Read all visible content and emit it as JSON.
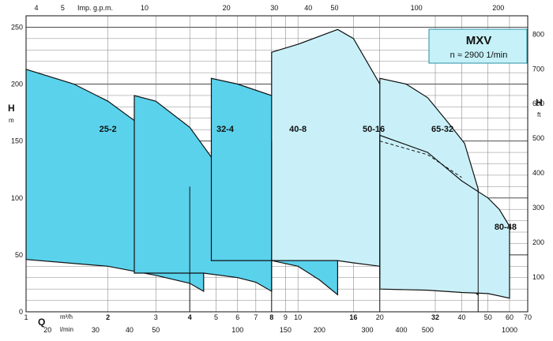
{
  "chart_data": {
    "type": "area",
    "title": "MXV",
    "subtitle": "n ≈ 2900 1/min",
    "left_axis": {
      "label": "H",
      "unit": "m",
      "range": [
        0,
        260
      ],
      "ticks": [
        0,
        50,
        100,
        150,
        200,
        250
      ]
    },
    "right_axis": {
      "label": "H",
      "unit": "ft",
      "range": [
        0,
        853
      ],
      "ticks": [
        100,
        200,
        300,
        400,
        500,
        600,
        700,
        800
      ]
    },
    "bottom_axis": {
      "label": "Q",
      "scale": "log",
      "range_m3h": [
        1,
        70
      ],
      "primary_unit": "m³/h",
      "primary_ticks": [
        "1",
        "2",
        "3",
        "4",
        "5",
        "6",
        "7",
        "8",
        "9",
        "10",
        "16",
        "20",
        "32",
        "40",
        "50",
        "60",
        "70"
      ],
      "secondary_unit": "l/min",
      "secondary_ticks": [
        "20",
        "30",
        "40",
        "50",
        "100",
        "150",
        "200",
        "300",
        "400",
        "500",
        "1000"
      ]
    },
    "top_axis": {
      "label": "Imp. g.p.m.",
      "scale": "log",
      "ticks": [
        "4",
        "5",
        "10",
        "20",
        "30",
        "40",
        "50",
        "100",
        "200"
      ]
    },
    "grid": "on",
    "series": [
      {
        "name": "25-2",
        "upper": [
          [
            1,
            213
          ],
          [
            1.5,
            200
          ],
          [
            2,
            185
          ],
          [
            2.5,
            168
          ],
          [
            3,
            150
          ],
          [
            3.5,
            130
          ],
          [
            4,
            110
          ],
          [
            4.5,
            87
          ]
        ],
        "lower": [
          [
            1,
            46
          ],
          [
            2,
            40
          ],
          [
            3,
            32
          ],
          [
            4,
            25
          ],
          [
            4.5,
            18
          ]
        ]
      },
      {
        "name": "32-4",
        "upper": [
          [
            2.5,
            190
          ],
          [
            3,
            185
          ],
          [
            4,
            162
          ],
          [
            5,
            130
          ],
          [
            6,
            115
          ],
          [
            7,
            100
          ],
          [
            8,
            73
          ]
        ],
        "lower": [
          [
            4.5,
            34
          ],
          [
            6,
            30
          ],
          [
            7,
            26
          ],
          [
            8,
            18
          ]
        ]
      },
      {
        "name": "40-8",
        "upper": [
          [
            4.8,
            205
          ],
          [
            6,
            200
          ],
          [
            8,
            190
          ],
          [
            10,
            170
          ],
          [
            12,
            140
          ],
          [
            14,
            97
          ]
        ],
        "lower": [
          [
            8,
            45
          ],
          [
            10,
            40
          ],
          [
            12,
            28
          ],
          [
            14,
            15
          ]
        ]
      },
      {
        "name": "50-16",
        "upper": [
          [
            8,
            228
          ],
          [
            10,
            235
          ],
          [
            14,
            248
          ],
          [
            16,
            240
          ],
          [
            20,
            200
          ],
          [
            25,
            107
          ]
        ],
        "lower": [
          [
            14,
            45
          ],
          [
            16,
            43
          ],
          [
            20,
            40
          ],
          [
            22,
            35
          ],
          [
            25,
            25
          ]
        ]
      },
      {
        "name": "65-32",
        "upper": [
          [
            20,
            205
          ],
          [
            25,
            200
          ],
          [
            30,
            188
          ],
          [
            36,
            165
          ],
          [
            41,
            148
          ],
          [
            46,
            108
          ]
        ],
        "lower": [
          [
            25,
            32
          ],
          [
            30,
            30
          ],
          [
            36,
            28
          ],
          [
            41,
            24
          ],
          [
            46,
            15
          ]
        ]
      },
      {
        "name": "80-48",
        "upper": [
          [
            20,
            155
          ],
          [
            30,
            140
          ],
          [
            40,
            115
          ],
          [
            50,
            100
          ],
          [
            55,
            90
          ],
          [
            60,
            75
          ]
        ],
        "lower": [
          [
            20,
            20
          ],
          [
            30,
            19
          ],
          [
            40,
            17
          ],
          [
            50,
            16
          ],
          [
            60,
            12
          ]
        ]
      }
    ],
    "dashed_curve": [
      [
        20,
        150
      ],
      [
        30,
        138
      ],
      [
        40,
        118
      ]
    ],
    "drop_lines": [
      [
        4,
        110
      ],
      [
        8,
        150
      ],
      [
        20,
        155
      ],
      [
        46,
        108
      ]
    ]
  }
}
